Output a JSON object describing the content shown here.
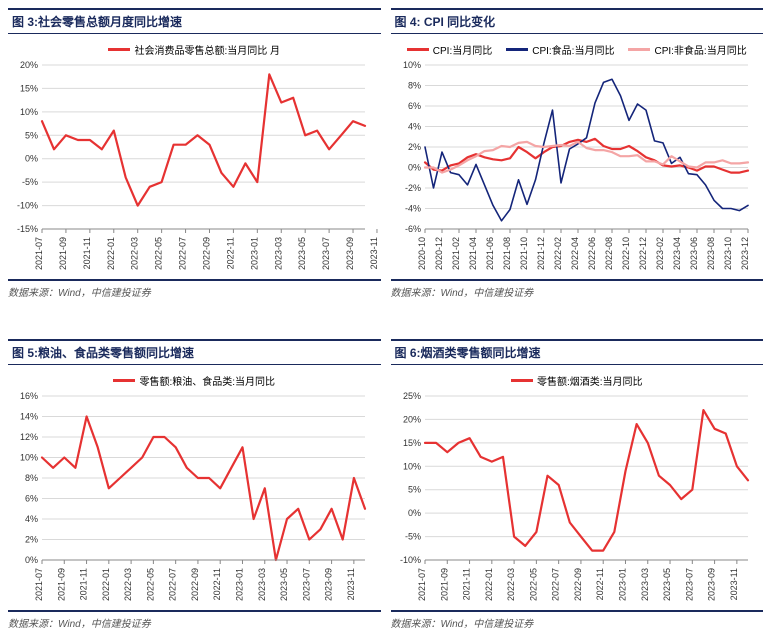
{
  "global": {
    "title_border_color": "#1a2a5c",
    "grid_color": "#d9d9d9",
    "axis_color": "#888888",
    "background_color": "#ffffff",
    "tick_fontsize": 9,
    "title_fontsize": 12
  },
  "charts": [
    {
      "title": "图 3:社会零售总额月度同比增速",
      "series": [
        {
          "name": "社会消费品零售总额:当月同比 月",
          "color": "#e63232",
          "width": 2.2,
          "values": [
            8,
            2,
            5,
            4,
            4,
            2,
            6,
            -4,
            -10,
            -6,
            -5,
            3,
            3,
            5,
            3,
            -3,
            -6,
            -1,
            -5,
            18,
            12,
            13,
            5,
            6,
            2,
            5,
            8,
            7
          ]
        }
      ],
      "x_labels": [
        "2021-07",
        "2021-09",
        "2021-11",
        "2022-01",
        "2022-03",
        "2022-05",
        "2022-07",
        "2022-09",
        "2022-11",
        "2023-01",
        "2023-03",
        "2023-05",
        "2023-07",
        "2023-09",
        "2023-11"
      ],
      "x_step": 2,
      "y_min": -15,
      "y_max": 20,
      "y_step": 5,
      "y_suffix": "%",
      "source": "数据来源：Wind，中信建投证券"
    },
    {
      "title": "图 4: CPI 同比变化",
      "series": [
        {
          "name": "CPI:当月同比",
          "color": "#e63232",
          "width": 2.2,
          "values": [
            0.5,
            -0.2,
            -0.3,
            0.2,
            0.4,
            1,
            1.3,
            1,
            0.8,
            0.7,
            0.9,
            2,
            1.5,
            0.9,
            1.5,
            2,
            2.1,
            2.5,
            2.7,
            2.5,
            2.8,
            2.1,
            1.8,
            1.8,
            2.1,
            1.6,
            1,
            0.7,
            0.2,
            0.1,
            0.2,
            0,
            -0.3,
            0.1,
            0.1,
            -0.2,
            -0.5,
            -0.5,
            -0.3
          ]
        },
        {
          "name": "CPI:食品:当月同比",
          "color": "#14257a",
          "width": 1.6,
          "values": [
            2,
            -2,
            1.5,
            -0.5,
            -0.7,
            -1.7,
            0.3,
            -1.7,
            -3.7,
            -5.2,
            -4.1,
            -1.2,
            -3.6,
            -1.2,
            2.4,
            5.6,
            -1.5,
            1.8,
            2.3,
            2.9,
            6.3,
            8.3,
            8.6,
            7,
            4.6,
            6.2,
            5.6,
            2.6,
            2.4,
            0.4,
            1,
            -0.6,
            -0.7,
            -1.7,
            -3.2,
            -4,
            -4,
            -4.2,
            -3.7
          ]
        },
        {
          "name": "CPI:非食品:当月同比",
          "color": "#f4a5a5",
          "width": 2.2,
          "values": [
            0,
            0,
            -0.5,
            -0.2,
            0.2,
            0.7,
            1.1,
            1.6,
            1.7,
            2.1,
            2,
            2.4,
            2.5,
            2.1,
            2,
            2.1,
            2.2,
            2.1,
            2.5,
            1.9,
            1.7,
            1.7,
            1.5,
            1.1,
            1.1,
            1.2,
            0.6,
            0.6,
            0.3,
            1.1,
            0.6,
            0.1,
            0,
            0.5,
            0.5,
            0.7,
            0.4,
            0.4,
            0.5
          ]
        }
      ],
      "x_labels": [
        "2020-10",
        "2020-12",
        "2021-02",
        "2021-04",
        "2021-06",
        "2021-08",
        "2021-10",
        "2021-12",
        "2022-02",
        "2022-04",
        "2022-06",
        "2022-08",
        "2022-10",
        "2022-12",
        "2023-02",
        "2023-04",
        "2023-06",
        "2023-08",
        "2023-10",
        "2023-12"
      ],
      "x_step": 2,
      "y_min": -6,
      "y_max": 10,
      "y_step": 2,
      "y_suffix": "%",
      "source": "数据来源：Wind，中信建投证券"
    },
    {
      "title": "图 5:粮油、食品类零售额同比增速",
      "series": [
        {
          "name": "零售额:粮油、食品类:当月同比",
          "color": "#e63232",
          "width": 2.2,
          "values": [
            10,
            9,
            10,
            9,
            14,
            11,
            7,
            8,
            9,
            10,
            12,
            12,
            11,
            9,
            8,
            8,
            7,
            9,
            11,
            4,
            7,
            0,
            4,
            5,
            2,
            3,
            5,
            2,
            8,
            5
          ]
        }
      ],
      "x_labels": [
        "2021-07",
        "2021-09",
        "2021-11",
        "2022-01",
        "2022-03",
        "2022-05",
        "2022-07",
        "2022-09",
        "2022-11",
        "2023-01",
        "2023-03",
        "2023-05",
        "2023-07",
        "2023-09",
        "2023-11"
      ],
      "x_step": 2,
      "y_min": 0,
      "y_max": 16,
      "y_step": 2,
      "y_suffix": "%",
      "source": "数据来源：Wind，中信建投证券"
    },
    {
      "title": "图 6:烟酒类零售额同比增速",
      "series": [
        {
          "name": "零售额:烟酒类:当月同比",
          "color": "#e63232",
          "width": 2.2,
          "values": [
            15,
            15,
            13,
            15,
            16,
            12,
            11,
            12,
            -5,
            -7,
            -4,
            8,
            6,
            -2,
            -5,
            -8,
            -8,
            -4,
            9,
            19,
            15,
            8,
            6,
            3,
            5,
            22,
            18,
            17,
            10,
            7
          ]
        }
      ],
      "x_labels": [
        "2021-07",
        "2021-09",
        "2021-11",
        "2022-01",
        "2022-03",
        "2022-05",
        "2022-07",
        "2022-09",
        "2022-11",
        "2023-01",
        "2023-03",
        "2023-05",
        "2023-07",
        "2023-09",
        "2023-11"
      ],
      "x_step": 2,
      "y_min": -10,
      "y_max": 25,
      "y_step": 5,
      "y_suffix": "%",
      "source": "数据来源：Wind，中信建投证券"
    }
  ]
}
